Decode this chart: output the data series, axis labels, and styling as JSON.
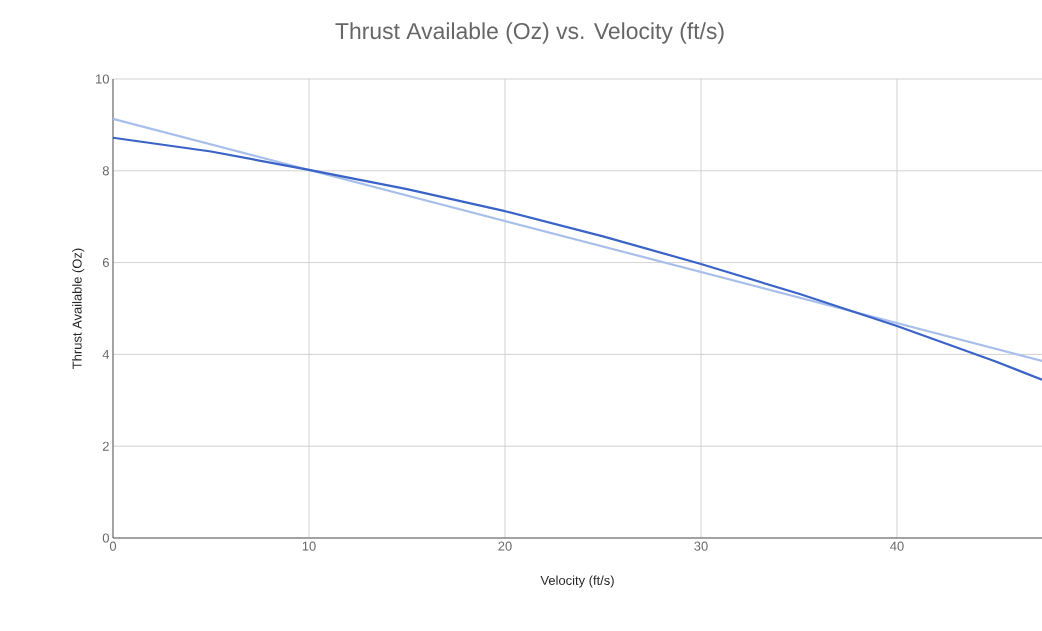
{
  "chart_data": {
    "type": "line",
    "title": "Thrust Available (Oz) vs. Velocity (ft/s)",
    "xlabel": "Velocity (ft/s)",
    "ylabel": "Thrust Available (Oz)",
    "xlim": [
      0,
      47.4
    ],
    "xticks": [
      0,
      10,
      20,
      30,
      40
    ],
    "ylim": [
      0,
      10
    ],
    "yticks": [
      0,
      2,
      4,
      6,
      8,
      10
    ],
    "grid": true,
    "marker": "none",
    "line_style": "solid",
    "series": [
      {
        "color": "#a8bfeb",
        "x": [
          0,
          47.4
        ],
        "values": [
          9.13,
          3.86
        ]
      },
      {
        "color": "#3a63c7",
        "x": [
          0,
          5,
          10,
          15,
          20,
          25,
          30,
          35,
          40,
          45,
          47.4
        ],
        "values": [
          8.72,
          8.42,
          8.02,
          7.6,
          7.12,
          6.57,
          5.97,
          5.32,
          4.62,
          3.85,
          3.45
        ]
      }
    ]
  }
}
